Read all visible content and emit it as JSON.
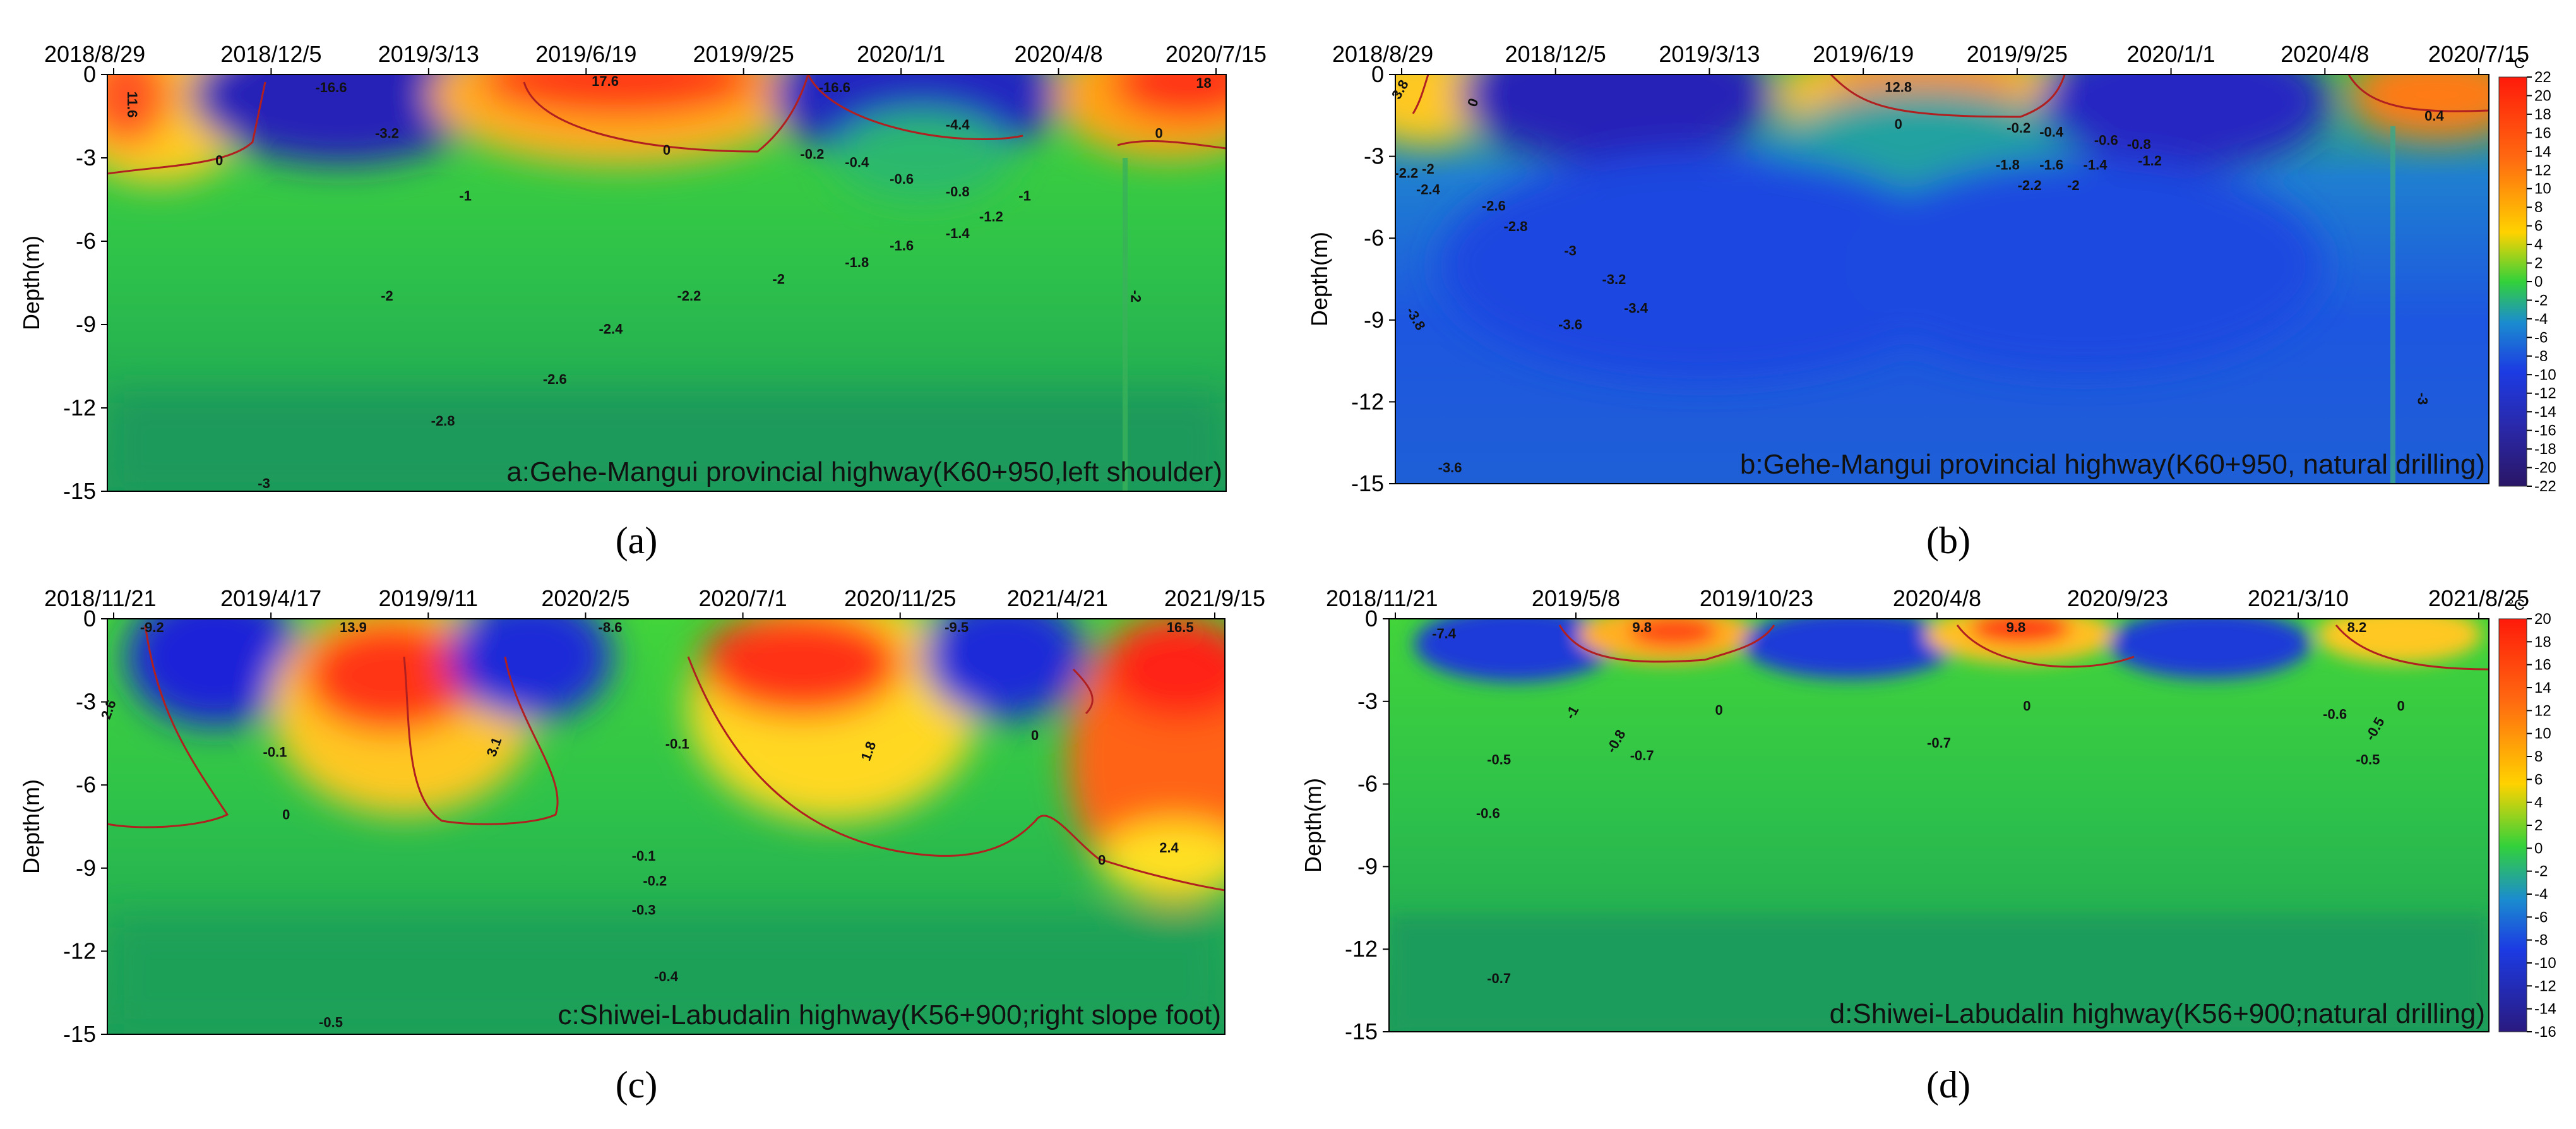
{
  "colors": {
    "deep_green": "#1ea055",
    "green": "#33cc33",
    "blue": "#1f44e6",
    "dark_blue": "#2b1c8c",
    "red": "#ff2a1a",
    "orange": "#ff9a1a",
    "yellow": "#fff000",
    "contour": "#b02020"
  },
  "chart_data": [
    {
      "type": "heatmap",
      "panel_label": "(a)",
      "caption": "a:Gehe-Mangui provincial highway(K60+950,left shoulder)",
      "ylabel": "Depth(m)",
      "ylim": [
        0,
        -15
      ],
      "yticks": [
        "0",
        "-3",
        "-6",
        "-9",
        "-12",
        "-15"
      ],
      "xticks": [
        "2018/8/29",
        "2018/12/5",
        "2019/3/13",
        "2019/6/19",
        "2019/9/25",
        "2020/1/1",
        "2020/4/8",
        "2020/7/15"
      ],
      "isotherm_labels": [
        "11.6",
        "-16.6",
        "-3.2",
        "17.6",
        "0",
        "-16.6",
        "-4.4",
        "18",
        "0",
        "0",
        "-0.2",
        "-0.4",
        "-0.6",
        "-0.8",
        "-1",
        "-1",
        "-1.2",
        "-1.4",
        "-1.6",
        "-1.8",
        "-2",
        "-2",
        "-2.2",
        "-2.4",
        "-2",
        "-2.6",
        "-2.8",
        "-3"
      ]
    },
    {
      "type": "heatmap",
      "panel_label": "(b)",
      "caption": "b:Gehe-Mangui provincial highway(K60+950, natural drilling)",
      "ylabel": "Depth(m)",
      "ylim": [
        0,
        -15
      ],
      "yticks": [
        "0",
        "-3",
        "-6",
        "-9",
        "-12",
        "-15"
      ],
      "xticks": [
        "2018/8/29",
        "2018/12/5",
        "2019/3/13",
        "2019/6/19",
        "2019/9/25",
        "2020/1/1",
        "2020/4/8",
        "2020/7/15"
      ],
      "colorbar": {
        "unit": "°C",
        "ticks": [
          "22",
          "20",
          "18",
          "16",
          "14",
          "12",
          "10",
          "8",
          "6",
          "4",
          "2",
          "0",
          "-2",
          "-4",
          "-6",
          "-8",
          "-10",
          "-12",
          "-14",
          "-16",
          "-18",
          "-20",
          "-22"
        ],
        "range": [
          -22,
          22
        ]
      },
      "isotherm_labels": [
        "3.8",
        "0",
        "12.8",
        "0",
        "-0.2",
        "-0.4",
        "-0.6",
        "-0.8",
        "0.4",
        "-2.2",
        "-2",
        "-2.4",
        "-2.6",
        "-2.8",
        "-3",
        "-3.2",
        "-3.4",
        "-3.6",
        "-3.8",
        "-1.8",
        "-1.6",
        "-1.4",
        "-1.2",
        "-2.2",
        "-2",
        "-3",
        "-3.6"
      ]
    },
    {
      "type": "heatmap",
      "panel_label": "(c)",
      "caption": "c:Shiwei-Labudalin highway(K56+900;right slope foot)",
      "ylabel": "Depth(m)",
      "ylim": [
        0,
        -15
      ],
      "yticks": [
        "0",
        "-3",
        "-6",
        "-9",
        "-12",
        "-15"
      ],
      "xticks": [
        "2018/11/21",
        "2019/4/17",
        "2019/9/11",
        "2020/2/5",
        "2020/7/1",
        "2020/11/25",
        "2021/4/21",
        "2021/9/15"
      ],
      "isotherm_labels": [
        "-9.2",
        "13.9",
        "-8.6",
        "-9.5",
        "16.5",
        "2.6",
        "-0.1",
        "3.1",
        "-0.1",
        "1.8",
        "0",
        "0",
        "0",
        "-0.1",
        "-0.2",
        "-0.3",
        "2.4",
        "-0.4",
        "-0.5"
      ]
    },
    {
      "type": "heatmap",
      "panel_label": "(d)",
      "caption": "d:Shiwei-Labudalin highway(K56+900;natural drilling)",
      "ylabel": "Depth(m)",
      "ylim": [
        0,
        -15
      ],
      "yticks": [
        "0",
        "-3",
        "-6",
        "-9",
        "-12",
        "-15"
      ],
      "xticks": [
        "2018/11/21",
        "2019/5/8",
        "2019/10/23",
        "2020/4/8",
        "2020/9/23",
        "2021/3/10",
        "2021/8/25"
      ],
      "colorbar": {
        "unit": "°C",
        "ticks": [
          "20",
          "18",
          "16",
          "14",
          "12",
          "10",
          "8",
          "6",
          "4",
          "2",
          "0",
          "-2",
          "-4",
          "-6",
          "-8",
          "-10",
          "-12",
          "-14",
          "-16"
        ],
        "range": [
          -16,
          20
        ]
      },
      "isotherm_labels": [
        "-7.4",
        "9.8",
        "9.8",
        "8.2",
        "0",
        "0",
        "0",
        "-1",
        "-0.8",
        "-0.7",
        "-0.5",
        "-0.7",
        "-0.6",
        "-0.5",
        "-0.5",
        "-0.6",
        "-0.7"
      ]
    }
  ]
}
